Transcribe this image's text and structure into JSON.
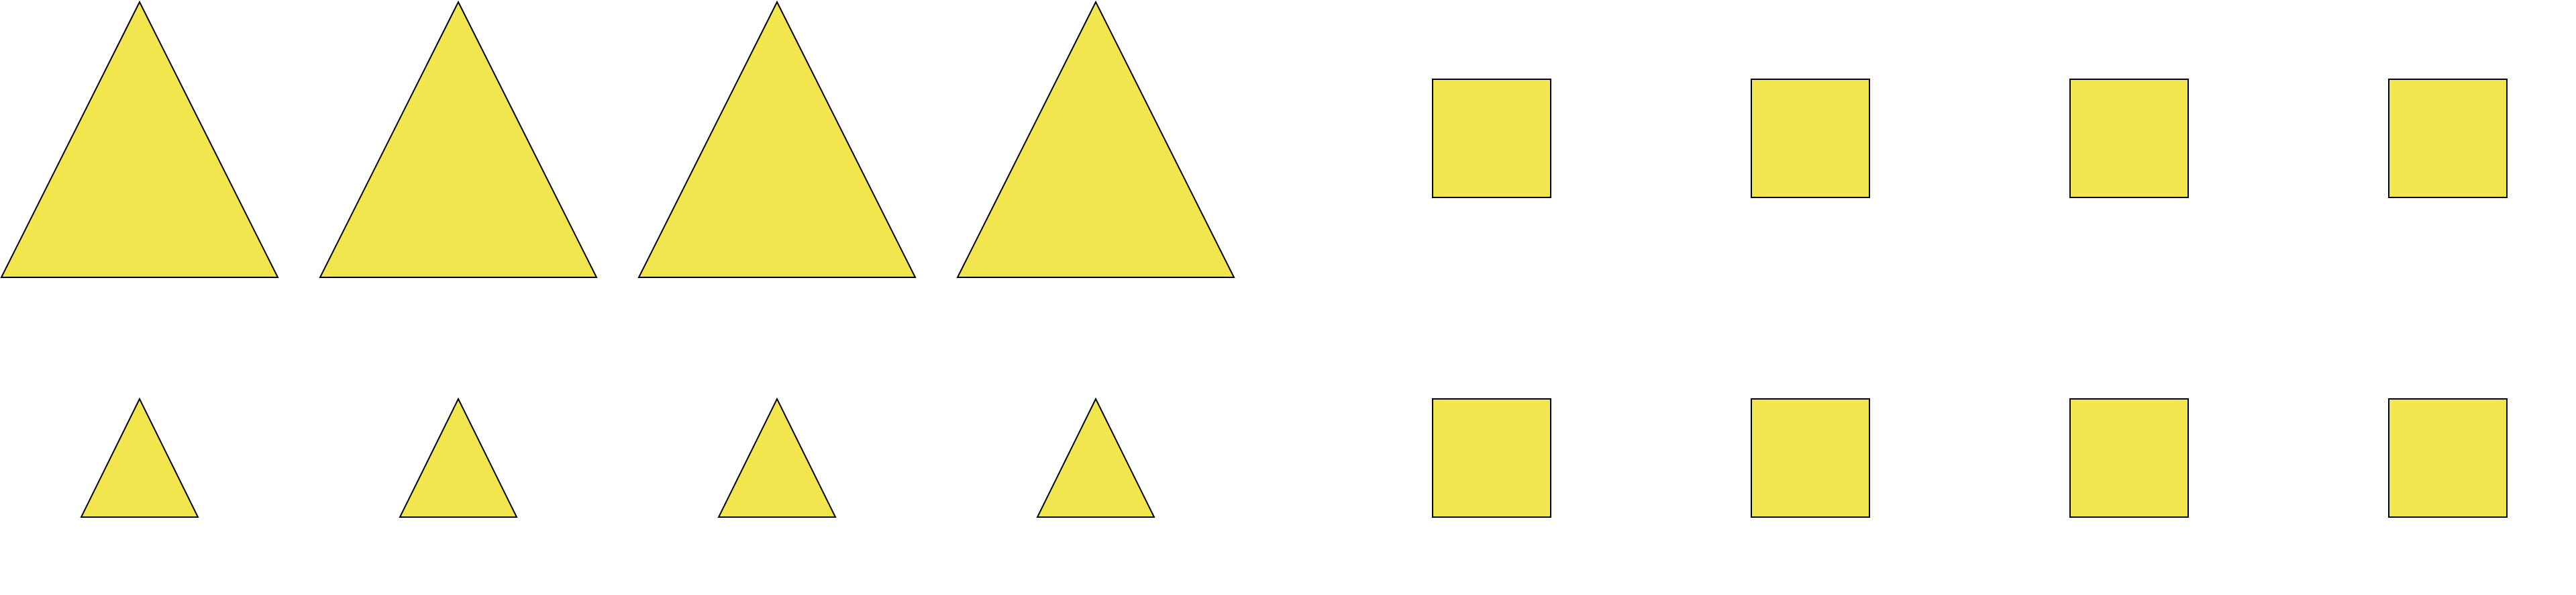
{
  "figure": {
    "fill_color": "#F2E64E",
    "stroke_color": "#000000",
    "rows": [
      {
        "name": "top-row",
        "groups": [
          {
            "shape": "triangle",
            "size": "large",
            "count": 4
          },
          {
            "shape": "square",
            "size": "small",
            "count": 4
          }
        ]
      },
      {
        "name": "bottom-row",
        "groups": [
          {
            "shape": "triangle",
            "size": "small",
            "count": 4
          },
          {
            "shape": "square",
            "size": "small",
            "count": 4
          }
        ]
      }
    ]
  }
}
